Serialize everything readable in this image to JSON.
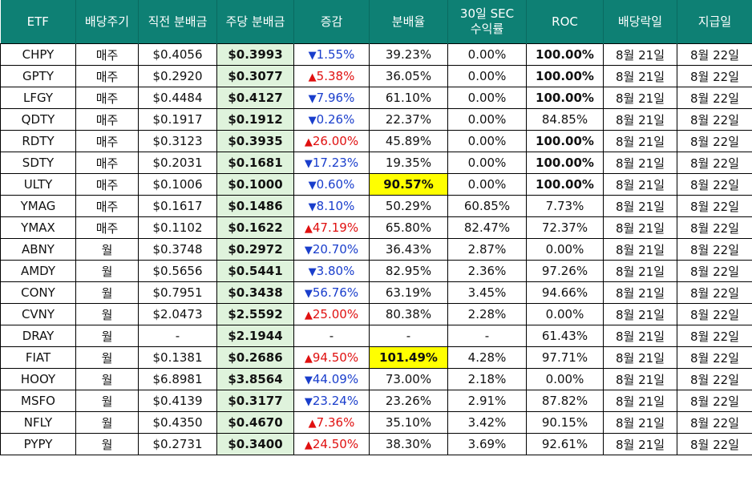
{
  "headers": [
    "ETF",
    "배당주기",
    "직전 분배금",
    "주당 분배금",
    "증감",
    "분배율",
    "30일 SEC 수익률",
    "ROC",
    "배당락일",
    "지급일"
  ],
  "rows": [
    {
      "etf": "CHPY",
      "cycle": "매주",
      "prev": "$0.4056",
      "cur": "$0.3993",
      "dir": "down",
      "change": "1.55%",
      "rate": "39.23%",
      "sec": "0.00%",
      "roc": "100.00%",
      "ex": "8월 21일",
      "pay": "8월 22일"
    },
    {
      "etf": "GPTY",
      "cycle": "매주",
      "prev": "$0.2920",
      "cur": "$0.3077",
      "dir": "up",
      "change": "5.38%",
      "rate": "36.05%",
      "sec": "0.00%",
      "roc": "100.00%",
      "ex": "8월 21일",
      "pay": "8월 22일"
    },
    {
      "etf": "LFGY",
      "cycle": "매주",
      "prev": "$0.4484",
      "cur": "$0.4127",
      "dir": "down",
      "change": "7.96%",
      "rate": "61.10%",
      "sec": "0.00%",
      "roc": "100.00%",
      "ex": "8월 21일",
      "pay": "8월 22일"
    },
    {
      "etf": "QDTY",
      "cycle": "매주",
      "prev": "$0.1917",
      "cur": "$0.1912",
      "dir": "down",
      "change": "0.26%",
      "rate": "22.37%",
      "sec": "0.00%",
      "roc": "84.85%",
      "ex": "8월 21일",
      "pay": "8월 22일"
    },
    {
      "etf": "RDTY",
      "cycle": "매주",
      "prev": "$0.3123",
      "cur": "$0.3935",
      "dir": "up",
      "change": "26.00%",
      "rate": "45.89%",
      "sec": "0.00%",
      "roc": "100.00%",
      "ex": "8월 21일",
      "pay": "8월 22일"
    },
    {
      "etf": "SDTY",
      "cycle": "매주",
      "prev": "$0.2031",
      "cur": "$0.1681",
      "dir": "down",
      "change": "17.23%",
      "rate": "19.35%",
      "sec": "0.00%",
      "roc": "100.00%",
      "ex": "8월 21일",
      "pay": "8월 22일"
    },
    {
      "etf": "ULTY",
      "cycle": "매주",
      "prev": "$0.1006",
      "cur": "$0.1000",
      "dir": "down",
      "change": "0.60%",
      "rate": "90.57%",
      "rate_highlight": true,
      "sec": "0.00%",
      "roc": "100.00%",
      "ex": "8월 21일",
      "pay": "8월 22일"
    },
    {
      "etf": "YMAG",
      "cycle": "매주",
      "prev": "$0.1617",
      "cur": "$0.1486",
      "dir": "down",
      "change": "8.10%",
      "rate": "50.29%",
      "sec": "60.85%",
      "roc": "7.73%",
      "ex": "8월 21일",
      "pay": "8월 22일"
    },
    {
      "etf": "YMAX",
      "cycle": "매주",
      "prev": "$0.1102",
      "cur": "$0.1622",
      "dir": "up",
      "change": "47.19%",
      "rate": "65.80%",
      "sec": "82.47%",
      "roc": "72.37%",
      "ex": "8월 21일",
      "pay": "8월 22일"
    },
    {
      "etf": "ABNY",
      "cycle": "월",
      "prev": "$0.3748",
      "cur": "$0.2972",
      "dir": "down",
      "change": "20.70%",
      "rate": "36.43%",
      "sec": "2.87%",
      "roc": "0.00%",
      "ex": "8월 21일",
      "pay": "8월 22일"
    },
    {
      "etf": "AMDY",
      "cycle": "월",
      "prev": "$0.5656",
      "cur": "$0.5441",
      "dir": "down",
      "change": "3.80%",
      "rate": "82.95%",
      "sec": "2.36%",
      "roc": "97.26%",
      "ex": "8월 21일",
      "pay": "8월 22일"
    },
    {
      "etf": "CONY",
      "cycle": "월",
      "prev": "$0.7951",
      "cur": "$0.3438",
      "dir": "down",
      "change": "56.76%",
      "rate": "63.19%",
      "sec": "3.45%",
      "roc": "94.66%",
      "ex": "8월 21일",
      "pay": "8월 22일"
    },
    {
      "etf": "CVNY",
      "cycle": "월",
      "prev": "$2.0473",
      "cur": "$2.5592",
      "dir": "up",
      "change": "25.00%",
      "rate": "80.38%",
      "sec": "2.28%",
      "roc": "0.00%",
      "ex": "8월 21일",
      "pay": "8월 22일"
    },
    {
      "etf": "DRAY",
      "cycle": "월",
      "prev": "-",
      "cur": "$2.1944",
      "dir": "none",
      "change": "-",
      "rate": "-",
      "sec": "-",
      "roc": "61.43%",
      "ex": "8월 21일",
      "pay": "8월 22일"
    },
    {
      "etf": "FIAT",
      "cycle": "월",
      "prev": "$0.1381",
      "cur": "$0.2686",
      "dir": "up",
      "change": "94.50%",
      "rate": "101.49%",
      "rate_highlight": true,
      "sec": "4.28%",
      "roc": "97.71%",
      "ex": "8월 21일",
      "pay": "8월 22일"
    },
    {
      "etf": "HOOY",
      "cycle": "월",
      "prev": "$6.8981",
      "cur": "$3.8564",
      "dir": "down",
      "change": "44.09%",
      "rate": "73.00%",
      "sec": "2.18%",
      "roc": "0.00%",
      "ex": "8월 21일",
      "pay": "8월 22일"
    },
    {
      "etf": "MSFO",
      "cycle": "월",
      "prev": "$0.4139",
      "cur": "$0.3177",
      "dir": "down",
      "change": "23.24%",
      "rate": "23.26%",
      "sec": "2.91%",
      "roc": "87.82%",
      "ex": "8월 21일",
      "pay": "8월 22일"
    },
    {
      "etf": "NFLY",
      "cycle": "월",
      "prev": "$0.4350",
      "cur": "$0.4670",
      "dir": "up",
      "change": "7.36%",
      "rate": "35.10%",
      "sec": "3.42%",
      "roc": "90.15%",
      "ex": "8월 21일",
      "pay": "8월 22일"
    },
    {
      "etf": "PYPY",
      "cycle": "월",
      "prev": "$0.2731",
      "cur": "$0.3400",
      "dir": "up",
      "change": "24.50%",
      "rate": "38.30%",
      "sec": "3.69%",
      "roc": "92.61%",
      "ex": "8월 21일",
      "pay": "8월 22일"
    }
  ],
  "symbols": {
    "up_arrow": "▲",
    "down_arrow": "▼"
  },
  "colors": {
    "header_bg": "#0e8074",
    "up": "#e01010",
    "down": "#1a3ecc",
    "highlight": "#ffff00",
    "cur_bg": "#dff3dc"
  }
}
